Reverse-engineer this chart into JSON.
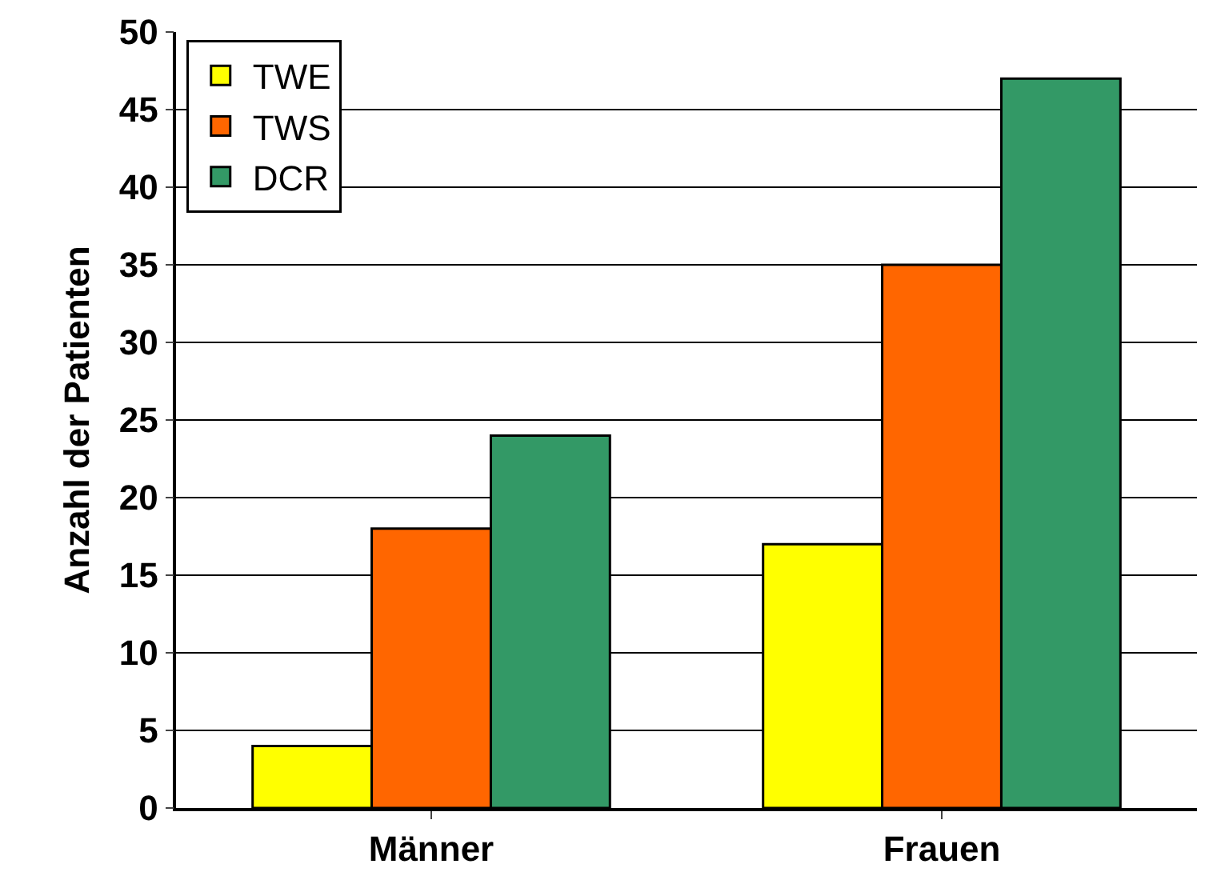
{
  "chart_data": {
    "type": "bar",
    "ylabel": "Anzahl der Patienten",
    "categories": [
      "Männer",
      "Frauen"
    ],
    "series": [
      {
        "name": "TWE",
        "color": "#ffff00",
        "values": [
          4,
          17
        ]
      },
      {
        "name": "TWS",
        "color": "#ff6600",
        "values": [
          18,
          35
        ]
      },
      {
        "name": "DCR",
        "color": "#339966",
        "values": [
          24,
          47
        ]
      }
    ],
    "ylim": [
      0,
      50
    ],
    "yticks": [
      0,
      5,
      10,
      15,
      20,
      25,
      30,
      35,
      40,
      45,
      50
    ],
    "grid": "y",
    "legend": "top left"
  }
}
